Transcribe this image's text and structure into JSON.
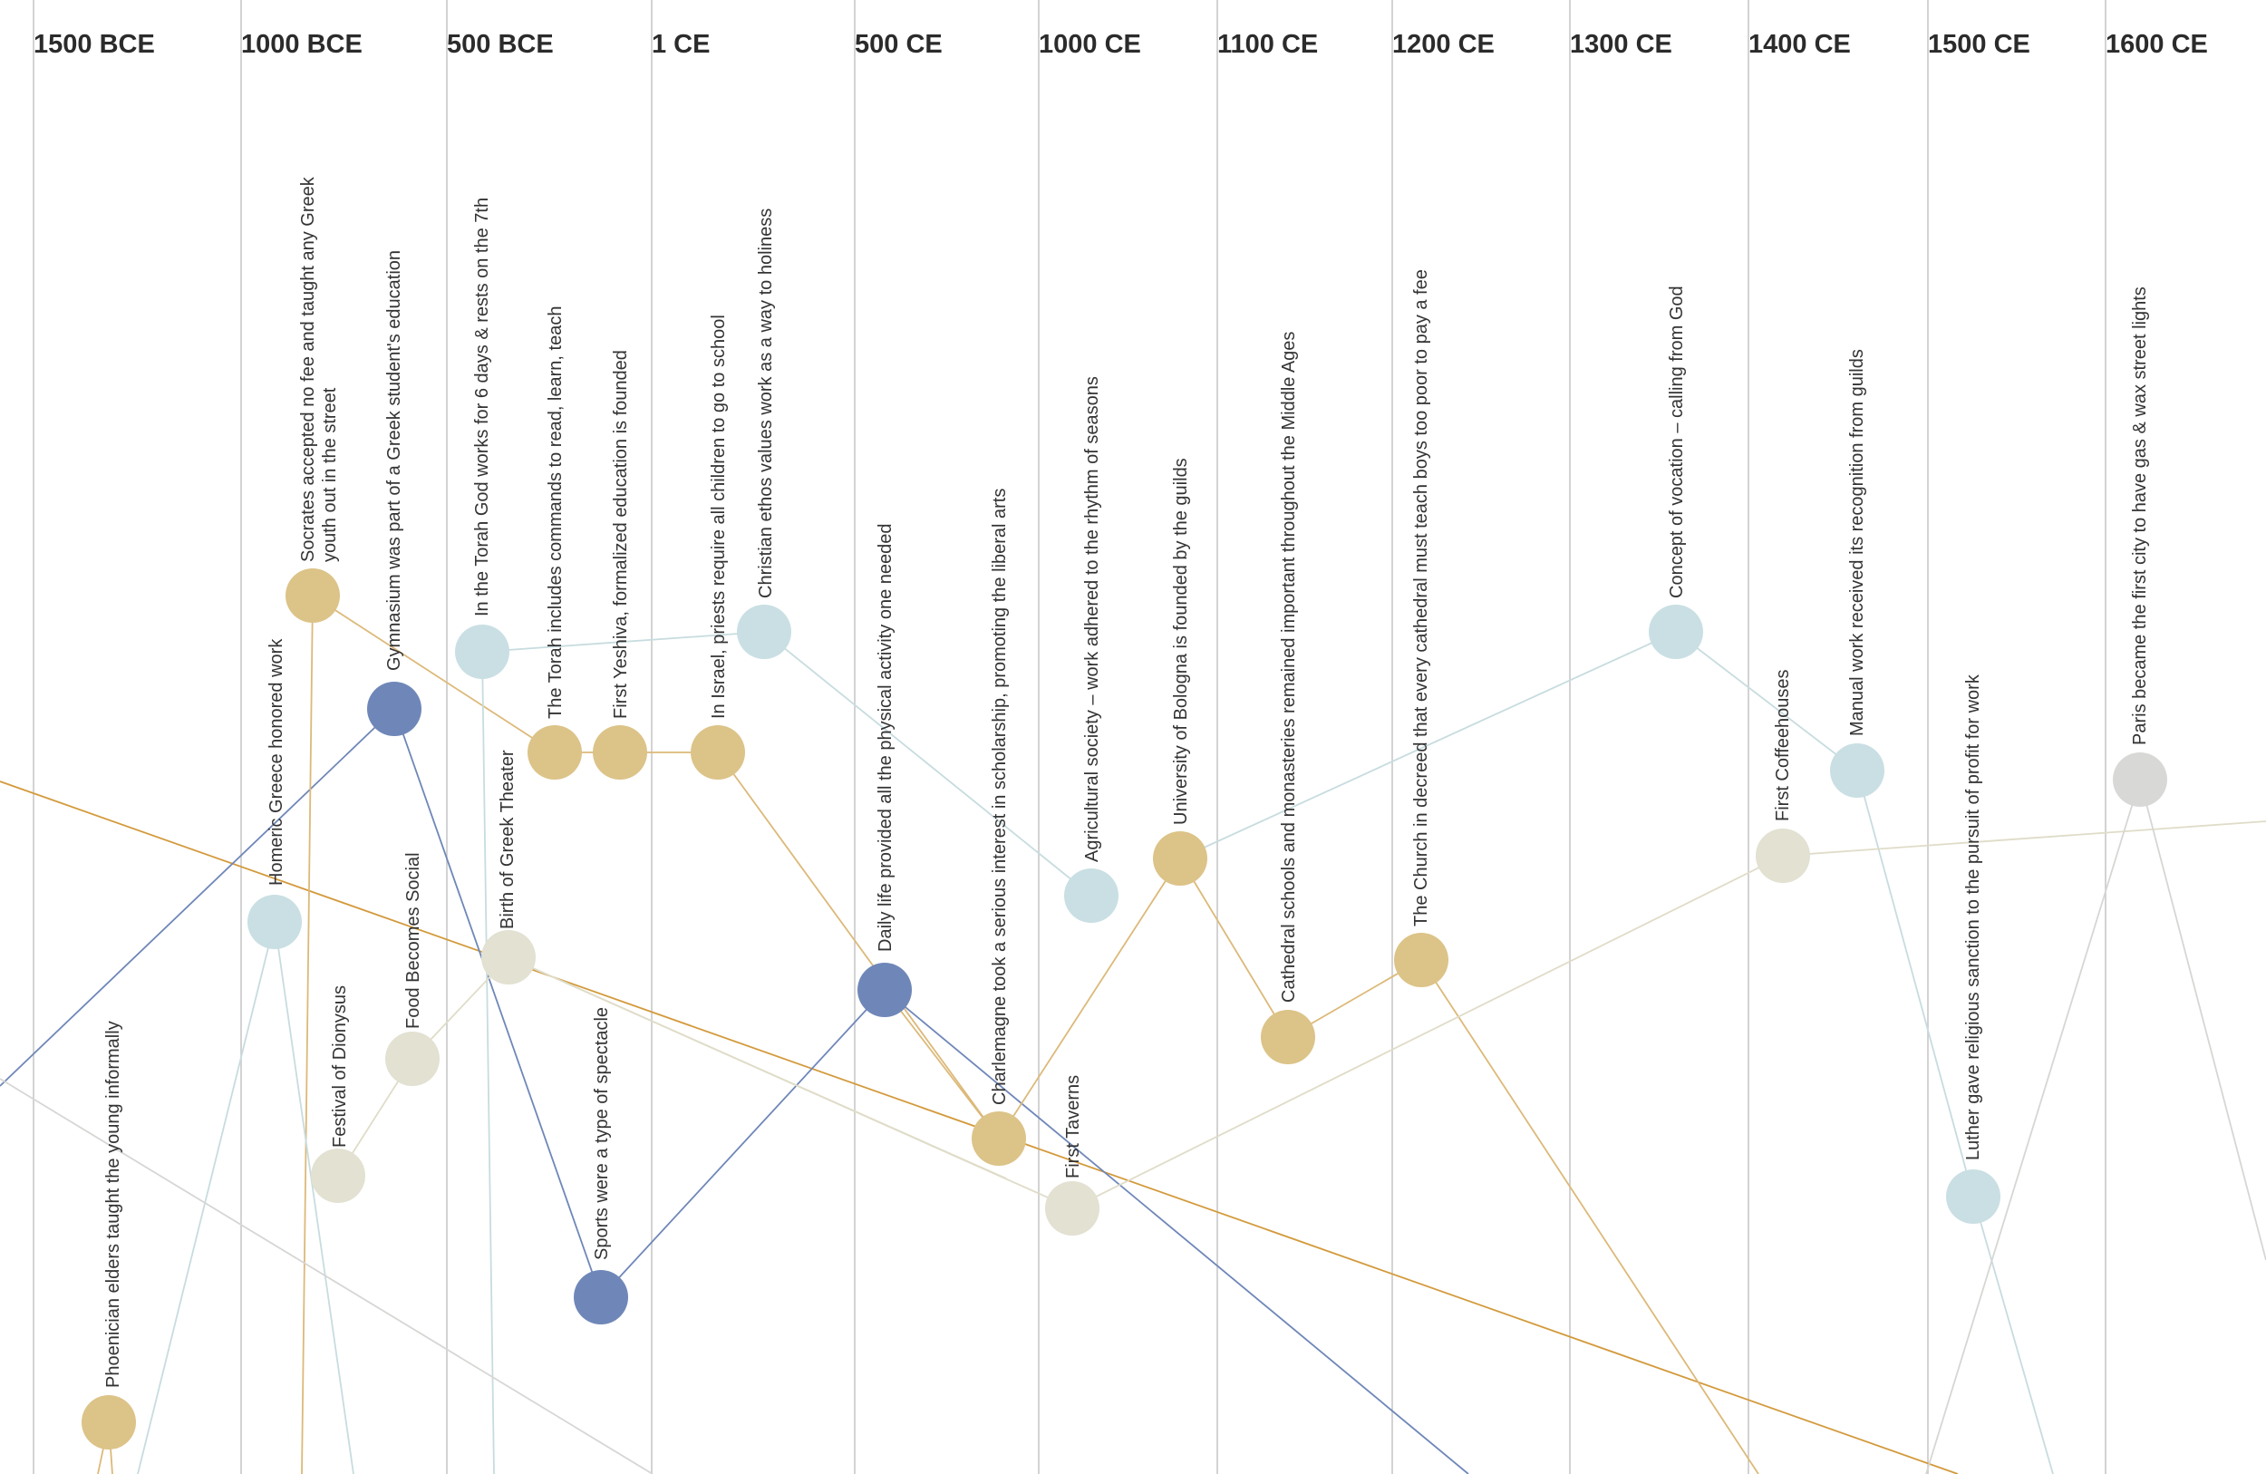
{
  "eras": [
    "1500 BCE",
    "1000 BCE",
    "500 BCE",
    "1 CE",
    "500 CE",
    "1000 CE",
    "1100 CE",
    "1200 CE",
    "1300 CE",
    "1400 CE",
    "1500 CE",
    "1600 CE"
  ],
  "colors": {
    "gold": "#dcc388",
    "blue": "#6f87b8",
    "lightblue": "#c9dfe3",
    "beige": "#e2e1d2",
    "gray": "#d8d8d6",
    "orange_line": "#d39a3c",
    "blue_line": "#6f87b8",
    "gold_line": "#dcb979",
    "lightblue_line": "#c7dcdf",
    "beige_line": "#dfdcc8",
    "gray_line": "#d6d6d4"
  },
  "events": [
    {
      "id": "phoenician",
      "category": "gold",
      "lines": [
        "Phoenician elders taught the young informally"
      ]
    },
    {
      "id": "homeric",
      "category": "lightblue",
      "lines": [
        "Homeric Greece honored work"
      ]
    },
    {
      "id": "socrates",
      "category": "gold",
      "lines": [
        "Socrates accepted no fee and taught any Greek",
        "youth out in the street"
      ]
    },
    {
      "id": "dionysus",
      "category": "beige",
      "lines": [
        "Festival of Dionysus"
      ]
    },
    {
      "id": "gymnasium",
      "category": "blue",
      "lines": [
        "Gymnasium was part of a Greek student's education"
      ]
    },
    {
      "id": "food",
      "category": "beige",
      "lines": [
        "Food Becomes Social"
      ]
    },
    {
      "id": "torah7",
      "category": "lightblue",
      "lines": [
        "In the Torah God works for 6 days & rests on the 7th"
      ]
    },
    {
      "id": "theater",
      "category": "beige",
      "lines": [
        "Birth of Greek Theater"
      ]
    },
    {
      "id": "torahcmd",
      "category": "gold",
      "lines": [
        "The Torah includes commands to read, learn, teach"
      ]
    },
    {
      "id": "sports",
      "category": "blue",
      "lines": [
        "Sports were a type of spectacle"
      ]
    },
    {
      "id": "yeshiva",
      "category": "gold",
      "lines": [
        "First Yeshiva, formalized education is founded"
      ]
    },
    {
      "id": "israel",
      "category": "gold",
      "lines": [
        "In Israel, priests require all children to go to school"
      ]
    },
    {
      "id": "christian",
      "category": "lightblue",
      "lines": [
        "Christian ethos values work as a way to holiness"
      ]
    },
    {
      "id": "dailylife",
      "category": "blue",
      "lines": [
        "Daily life provided all the physical activity one needed"
      ]
    },
    {
      "id": "charlemagne",
      "category": "gold",
      "lines": [
        "Charlemagne took a serious interest in scholarship, promoting the liberal arts"
      ]
    },
    {
      "id": "taverns",
      "category": "beige",
      "lines": [
        "First Taverns"
      ]
    },
    {
      "id": "agri",
      "category": "lightblue",
      "lines": [
        "Agricultural society – work adhered to the rhythm of seasons"
      ]
    },
    {
      "id": "bologna",
      "category": "gold",
      "lines": [
        "University of Bologna is founded by the guilds"
      ]
    },
    {
      "id": "cathedral",
      "category": "gold",
      "lines": [
        "Cathedral schools and monasteries remained important throughout the Middle Ages"
      ]
    },
    {
      "id": "church",
      "category": "gold",
      "lines": [
        "The Church in decreed that every cathedral must  teach boys too poor to pay a fee"
      ]
    },
    {
      "id": "vocation",
      "category": "lightblue",
      "lines": [
        "Concept of vocation – calling from God"
      ]
    },
    {
      "id": "coffee",
      "category": "beige",
      "lines": [
        "First Coffeehouses"
      ]
    },
    {
      "id": "manual",
      "category": "lightblue",
      "lines": [
        "Manual work received its recognition from guilds"
      ]
    },
    {
      "id": "luther",
      "category": "lightblue",
      "lines": [
        "Luther gave religious sanction to the pursuit of profit for work"
      ]
    },
    {
      "id": "paris",
      "category": "gray",
      "lines": [
        "Paris became the first city to have gas & wax street lights"
      ]
    }
  ]
}
